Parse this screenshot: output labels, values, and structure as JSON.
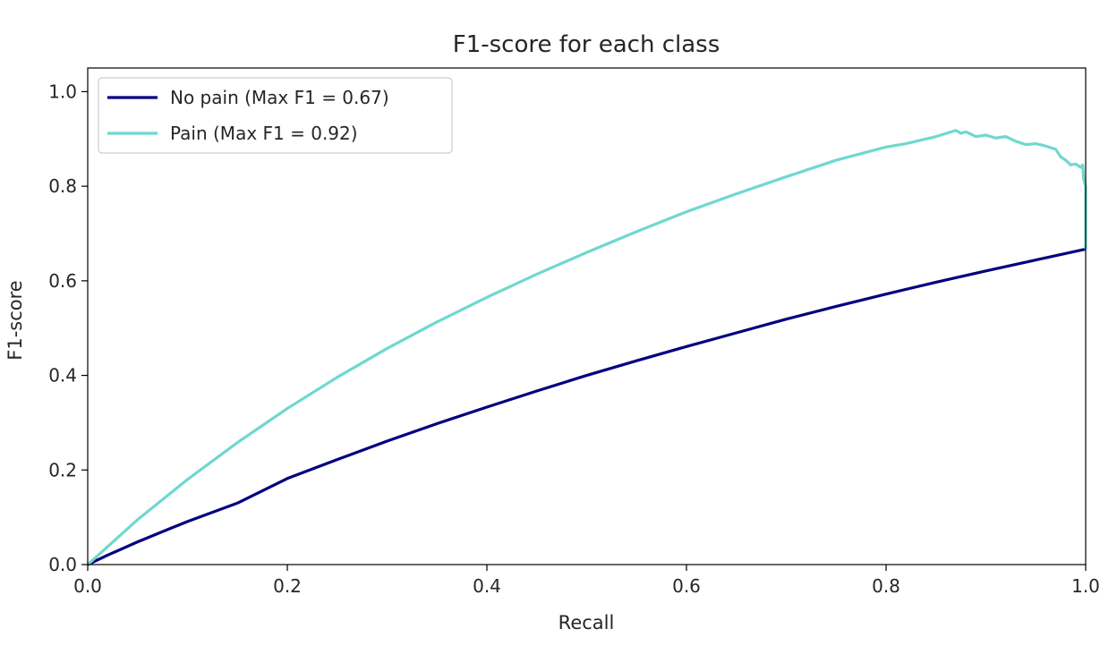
{
  "chart_data": {
    "type": "line",
    "title": "F1-score for each class",
    "xlabel": "Recall",
    "ylabel": "F1-score",
    "xlim": [
      0.0,
      1.0
    ],
    "ylim": [
      0.0,
      1.05
    ],
    "xticks": [
      "0.0",
      "0.2",
      "0.4",
      "0.6",
      "0.8",
      "1.0"
    ],
    "yticks": [
      "0.0",
      "0.2",
      "0.4",
      "0.6",
      "0.8",
      "1.0"
    ],
    "grid": false,
    "legend_position": "upper left",
    "series": [
      {
        "name": "No pain (Max F1 = 0.67)",
        "color": "#000080",
        "points": [
          [
            0.0,
            0.0
          ],
          [
            0.02,
            0.02
          ],
          [
            0.05,
            0.048
          ],
          [
            0.08,
            0.074
          ],
          [
            0.1,
            0.091
          ],
          [
            0.15,
            0.13
          ],
          [
            0.2,
            0.182
          ],
          [
            0.25,
            0.222
          ],
          [
            0.3,
            0.261
          ],
          [
            0.35,
            0.298
          ],
          [
            0.4,
            0.333
          ],
          [
            0.45,
            0.367
          ],
          [
            0.5,
            0.4
          ],
          [
            0.55,
            0.431
          ],
          [
            0.6,
            0.461
          ],
          [
            0.65,
            0.49
          ],
          [
            0.7,
            0.519
          ],
          [
            0.75,
            0.546
          ],
          [
            0.8,
            0.572
          ],
          [
            0.85,
            0.597
          ],
          [
            0.9,
            0.621
          ],
          [
            0.95,
            0.644
          ],
          [
            1.0,
            0.667
          ]
        ]
      },
      {
        "name": "Pain (Max F1 = 0.92)",
        "color": "#6fd8cf",
        "points": [
          [
            0.0,
            0.0
          ],
          [
            0.02,
            0.038
          ],
          [
            0.05,
            0.095
          ],
          [
            0.1,
            0.18
          ],
          [
            0.15,
            0.258
          ],
          [
            0.2,
            0.33
          ],
          [
            0.25,
            0.396
          ],
          [
            0.3,
            0.457
          ],
          [
            0.35,
            0.513
          ],
          [
            0.4,
            0.565
          ],
          [
            0.45,
            0.614
          ],
          [
            0.5,
            0.66
          ],
          [
            0.55,
            0.704
          ],
          [
            0.6,
            0.746
          ],
          [
            0.65,
            0.784
          ],
          [
            0.7,
            0.82
          ],
          [
            0.75,
            0.855
          ],
          [
            0.8,
            0.883
          ],
          [
            0.82,
            0.89
          ],
          [
            0.85,
            0.905
          ],
          [
            0.87,
            0.918
          ],
          [
            0.875,
            0.912
          ],
          [
            0.88,
            0.915
          ],
          [
            0.89,
            0.905
          ],
          [
            0.9,
            0.908
          ],
          [
            0.91,
            0.902
          ],
          [
            0.92,
            0.905
          ],
          [
            0.93,
            0.895
          ],
          [
            0.94,
            0.888
          ],
          [
            0.95,
            0.89
          ],
          [
            0.96,
            0.885
          ],
          [
            0.97,
            0.878
          ],
          [
            0.975,
            0.862
          ],
          [
            0.98,
            0.855
          ],
          [
            0.985,
            0.845
          ],
          [
            0.99,
            0.847
          ],
          [
            0.995,
            0.84
          ],
          [
            0.997,
            0.845
          ],
          [
            0.998,
            0.815
          ],
          [
            1.0,
            0.8
          ],
          [
            1.0,
            0.667
          ]
        ]
      }
    ]
  }
}
